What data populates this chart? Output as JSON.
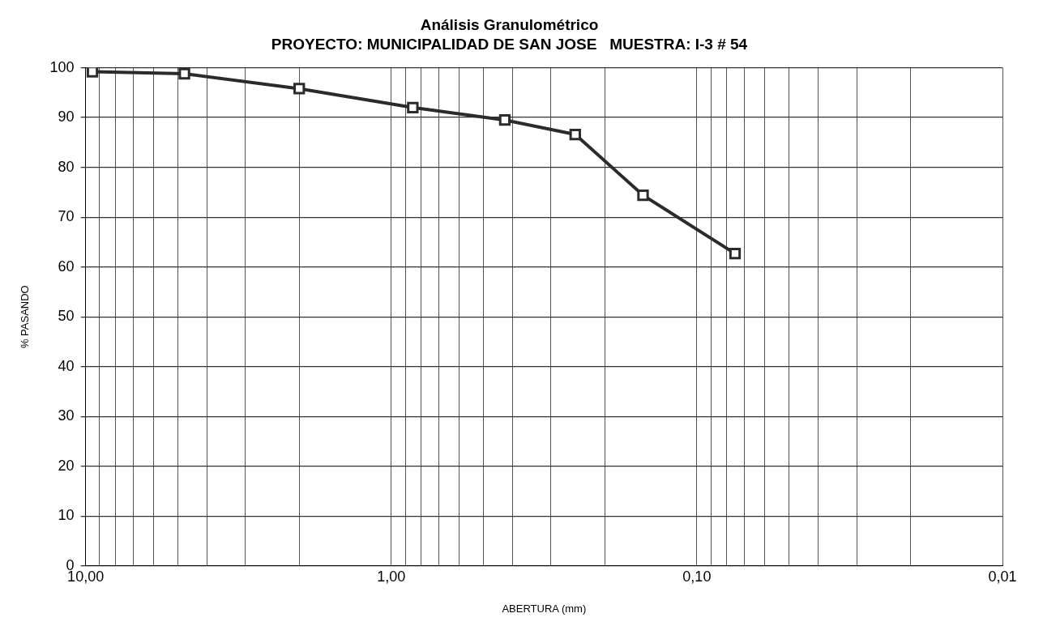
{
  "chart_data": {
    "type": "line",
    "title": "Análisis Granulométrico",
    "subtitle": "PROYECTO: MUNICIPALIDAD DE SAN JOSE   MUESTRA: I-3 # 54",
    "xlabel": "ABERTURA (mm)",
    "ylabel": "% PASANDO",
    "x": [
      9.5,
      4.75,
      2.0,
      0.85,
      0.425,
      0.25,
      0.15,
      0.075
    ],
    "series": [
      {
        "color": "#2b2b2b",
        "values": [
          99.2,
          98.8,
          95.8,
          92,
          89.5,
          86.6,
          74.4,
          62.7
        ]
      }
    ],
    "log": "x",
    "xlim": [
      10,
      0.01
    ],
    "xticks": [
      {
        "value": 10,
        "label": "10,00"
      },
      {
        "value": 9,
        "label": null
      },
      {
        "value": 8,
        "label": null
      },
      {
        "value": 7,
        "label": null
      },
      {
        "value": 6,
        "label": null
      },
      {
        "value": 5,
        "label": null
      },
      {
        "value": 4,
        "label": null
      },
      {
        "value": 3,
        "label": null
      },
      {
        "value": 2,
        "label": null
      },
      {
        "value": 1,
        "label": "1,00"
      },
      {
        "value": 0.9,
        "label": null
      },
      {
        "value": 0.8,
        "label": null
      },
      {
        "value": 0.7,
        "label": null
      },
      {
        "value": 0.6,
        "label": null
      },
      {
        "value": 0.5,
        "label": null
      },
      {
        "value": 0.4,
        "label": null
      },
      {
        "value": 0.3,
        "label": null
      },
      {
        "value": 0.2,
        "label": null
      },
      {
        "value": 0.1,
        "label": "0,10"
      },
      {
        "value": 0.09,
        "label": null
      },
      {
        "value": 0.08,
        "label": null
      },
      {
        "value": 0.07,
        "label": null
      },
      {
        "value": 0.06,
        "label": null
      },
      {
        "value": 0.05,
        "label": null
      },
      {
        "value": 0.04,
        "label": null
      },
      {
        "value": 0.03,
        "label": null
      },
      {
        "value": 0.02,
        "label": null
      },
      {
        "value": 0.01,
        "label": "0,01"
      }
    ],
    "ylim": [
      0,
      100
    ],
    "yticks": [
      0,
      10,
      20,
      30,
      40,
      50,
      60,
      70,
      80,
      90,
      100
    ],
    "grid": true,
    "legend": false,
    "marker": "square",
    "line_style": "solid"
  }
}
